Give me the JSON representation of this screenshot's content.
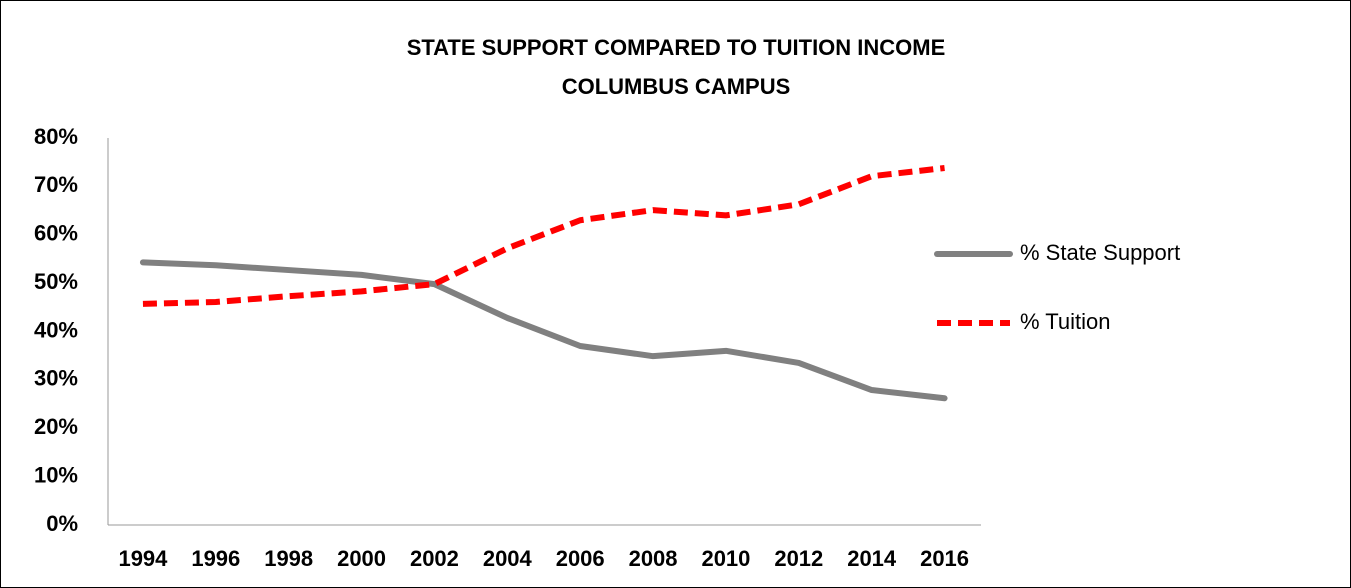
{
  "chart_data": {
    "type": "line",
    "title": "STATE SUPPORT COMPARED TO TUITION INCOME",
    "subtitle": "COLUMBUS CAMPUS",
    "categories": [
      "1994",
      "1996",
      "1998",
      "2000",
      "2002",
      "2004",
      "2006",
      "2008",
      "2010",
      "2012",
      "2014",
      "2016"
    ],
    "series": [
      {
        "name": "% State Support",
        "color": "#808080",
        "dash": false,
        "values": [
          54.3,
          53.7,
          52.7,
          51.7,
          49.8,
          42.8,
          37.0,
          34.9,
          36.0,
          33.5,
          27.9,
          26.2
        ]
      },
      {
        "name": "% Tuition",
        "color": "#ff0000",
        "dash": true,
        "values": [
          45.7,
          46.1,
          47.3,
          48.3,
          49.8,
          57.2,
          63.0,
          65.1,
          64.0,
          66.3,
          72.1,
          73.8
        ]
      }
    ],
    "ylim": [
      0,
      80
    ],
    "yticks": [
      {
        "value": 0,
        "label": "0%"
      },
      {
        "value": 10,
        "label": "10%"
      },
      {
        "value": 20,
        "label": "20%"
      },
      {
        "value": 30,
        "label": "30%"
      },
      {
        "value": 40,
        "label": "40%"
      },
      {
        "value": 50,
        "label": "50%"
      },
      {
        "value": 60,
        "label": "60%"
      },
      {
        "value": 70,
        "label": "70%"
      },
      {
        "value": 80,
        "label": "80%"
      }
    ],
    "grid": false,
    "legend": "right"
  }
}
